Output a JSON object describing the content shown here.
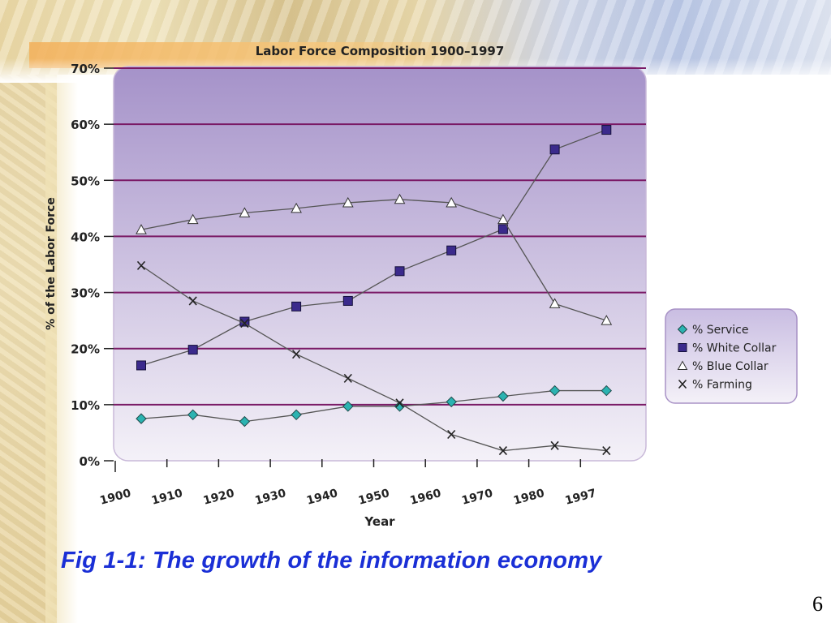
{
  "slide": {
    "caption": "Fig 1-1:  The growth of the information economy",
    "page_number": "6"
  },
  "chart_data": {
    "type": "line",
    "title": "Labor Force Composition 1900–1997",
    "xlabel": "Year",
    "ylabel": "% of the Labor Force",
    "y_ticks": [
      "0%",
      "10%",
      "20%",
      "30%",
      "40%",
      "50%",
      "60%",
      "70%"
    ],
    "ylim": [
      0,
      70
    ],
    "categories": [
      "1900",
      "1910",
      "1920",
      "1930",
      "1940",
      "1950",
      "1960",
      "1970",
      "1980",
      "1997"
    ],
    "grid": true,
    "legend_position": "right",
    "series": [
      {
        "name": "% Service",
        "marker": "diamond",
        "color": "#2bb3b1",
        "values": [
          7.5,
          8.2,
          7,
          8.2,
          9.7,
          9.7,
          10.5,
          11.5,
          12.5,
          12.5
        ]
      },
      {
        "name": "% White Collar",
        "marker": "square",
        "color": "#3b2a8c",
        "values": [
          17,
          19.8,
          24.8,
          27.5,
          28.5,
          33.8,
          37.5,
          41.3,
          55.5,
          59
        ]
      },
      {
        "name": "% Blue Collar",
        "marker": "triangle",
        "color": "#ffffff",
        "values": [
          41.2,
          43,
          44.2,
          45,
          46,
          46.6,
          46,
          43,
          28,
          25
        ]
      },
      {
        "name": "% Farming",
        "marker": "x",
        "color": "#222222",
        "values": [
          34.8,
          28.5,
          24.5,
          19,
          14.7,
          10.3,
          4.7,
          1.8,
          2.7,
          1.8
        ]
      }
    ],
    "colors": {
      "plot_gradient_top": "#a592c9",
      "plot_gradient_bottom": "#f4f1f8",
      "gridline": "#7a1a66",
      "axis_text": "#222222",
      "series_line": "#555555"
    }
  }
}
